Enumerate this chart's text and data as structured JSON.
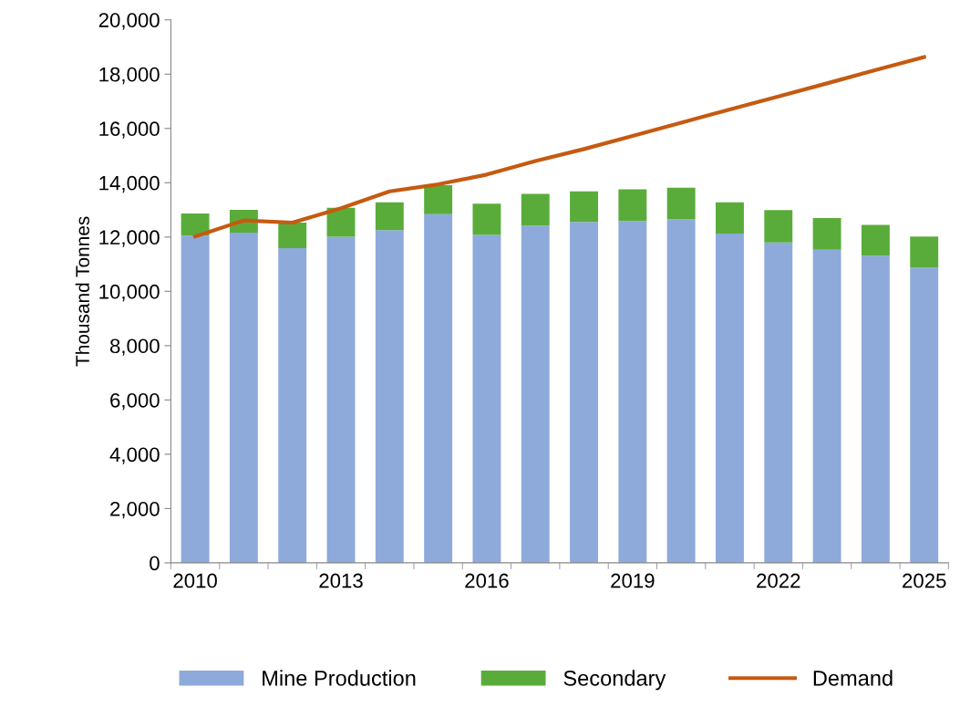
{
  "chart_data": {
    "type": "bar",
    "stacked": true,
    "ylabel": "Thousand Tonnes",
    "categories": [
      "2010",
      null,
      null,
      "2013",
      null,
      null,
      "2016",
      null,
      null,
      "2019",
      null,
      null,
      "2022",
      null,
      null,
      "2025"
    ],
    "series": [
      {
        "name": "Mine Production",
        "color": "#8eaadb",
        "values": [
          12050,
          12160,
          11590,
          12010,
          12250,
          12840,
          12080,
          12420,
          12560,
          12590,
          12650,
          12130,
          11800,
          11530,
          11310,
          10880
        ]
      },
      {
        "name": "Secondary",
        "color": "#5aac3a",
        "values": [
          820,
          840,
          940,
          1070,
          1030,
          1070,
          1150,
          1170,
          1120,
          1170,
          1170,
          1150,
          1190,
          1170,
          1140,
          1140
        ]
      },
      {
        "name": "Demand",
        "type": "line",
        "color": "#c55a11",
        "values": [
          12020,
          12610,
          12530,
          13060,
          13680,
          13940,
          14300,
          14800,
          15240,
          15720,
          16210,
          16700,
          17180,
          17660,
          18150,
          18630
        ]
      }
    ],
    "ylim": [
      0,
      20000
    ],
    "yticks": [
      {
        "value": 0,
        "label": "0"
      },
      {
        "value": 2000,
        "label": "2,000"
      },
      {
        "value": 4000,
        "label": "4,000"
      },
      {
        "value": 6000,
        "label": "6,000"
      },
      {
        "value": 8000,
        "label": "8,000"
      },
      {
        "value": 10000,
        "label": "10,000"
      },
      {
        "value": 12000,
        "label": "12,000"
      },
      {
        "value": 14000,
        "label": "14,000"
      },
      {
        "value": 16000,
        "label": "16,000"
      },
      {
        "value": 18000,
        "label": "18,000"
      },
      {
        "value": 20000,
        "label": "20,000"
      }
    ],
    "legend": "bottom",
    "grid": false,
    "marker": "none",
    "line_style": "solid"
  }
}
